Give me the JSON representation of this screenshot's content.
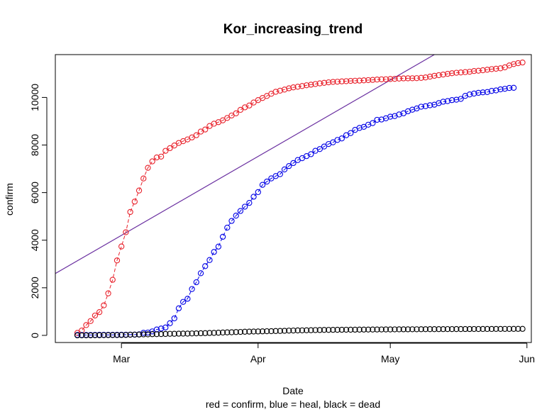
{
  "chart_data": {
    "type": "scatter",
    "title": "Kor_increasing_trend",
    "xlabel": "Date",
    "sublabel": "red = confirm, blue = heal, black = dead",
    "ylabel": "confirm",
    "x_start": "2020-02-20",
    "x_tick_labels": [
      "Mar",
      "Apr",
      "May",
      "Jun"
    ],
    "x_tick_dates": [
      "2020-03-01",
      "2020-04-01",
      "2020-05-01",
      "2020-06-01"
    ],
    "xlim": [
      "2020-02-15",
      "2020-06-02"
    ],
    "ylim": [
      -300,
      11800
    ],
    "y_ticks": [
      0,
      2000,
      4000,
      6000,
      8000,
      10000
    ],
    "grid": false,
    "legend": "none",
    "trend_line": {
      "x": [
        "2020-02-15",
        "2020-05-11"
      ],
      "y": [
        2600,
        11800
      ],
      "color": "#6a2fa0"
    },
    "series": [
      {
        "color": "#e8202a",
        "connected": true,
        "values": [
          104,
          204,
          433,
          602,
          833,
          977,
          1261,
          1766,
          2337,
          3150,
          3736,
          4335,
          5186,
          5621,
          6088,
          6593,
          7041,
          7313,
          7478,
          7513,
          7755,
          7869,
          7979,
          8086,
          8162,
          8236,
          8320,
          8413,
          8565,
          8652,
          8799,
          8897,
          8961,
          9037,
          9137,
          9241,
          9332,
          9478,
          9583,
          9661,
          9786,
          9887,
          9976,
          10062,
          10156,
          10237,
          10284,
          10331,
          10384,
          10423,
          10450,
          10480,
          10512,
          10537,
          10564,
          10591,
          10613,
          10635,
          10653,
          10661,
          10674,
          10683,
          10694,
          10702,
          10708,
          10718,
          10728,
          10738,
          10752,
          10761,
          10765,
          10774,
          10780,
          10793,
          10801,
          10804,
          10806,
          10810,
          10822,
          10840,
          10874,
          10909,
          10936,
          10962,
          10991,
          11018,
          11037,
          11050,
          11065,
          11078,
          11110,
          11122,
          11142,
          11165,
          11190,
          11206,
          11225,
          11265,
          11344,
          11402,
          11441,
          11468
        ]
      },
      {
        "color": "#0000e6",
        "connected": true,
        "values": [
          16,
          16,
          16,
          17,
          18,
          22,
          22,
          22,
          22,
          24,
          27,
          28,
          30,
          31,
          41,
          108,
          118,
          166,
          247,
          288,
          333,
          510,
          714,
          1137,
          1407,
          1540,
          1947,
          2233,
          2612,
          2909,
          3166,
          3507,
          3730,
          4144,
          4528,
          4811,
          5033,
          5228,
          5408,
          5567,
          5828,
          6021,
          6325,
          6463,
          6598,
          6694,
          6776,
          6973,
          7117,
          7243,
          7368,
          7447,
          7534,
          7616,
          7757,
          7829,
          7937,
          8042,
          8114,
          8213,
          8277,
          8411,
          8501,
          8635,
          8717,
          8764,
          8854,
          8922,
          9059,
          9072,
          9123,
          9191,
          9217,
          9283,
          9333,
          9419,
          9484,
          9538,
          9610,
          9632,
          9671,
          9695,
          9762,
          9821,
          9846,
          9888,
          9904,
          9938,
          10066,
          10125,
          10162,
          10194,
          10213,
          10226,
          10275,
          10295,
          10340,
          10363,
          10398,
          10405
        ]
      },
      {
        "color": "#000000",
        "connected": false,
        "values": [
          1,
          2,
          2,
          2,
          6,
          8,
          10,
          12,
          13,
          13,
          16,
          17,
          28,
          32,
          35,
          42,
          44,
          50,
          51,
          54,
          60,
          66,
          67,
          72,
          75,
          75,
          81,
          84,
          91,
          94,
          102,
          104,
          111,
          120,
          126,
          131,
          139,
          144,
          152,
          158,
          162,
          165,
          169,
          174,
          177,
          183,
          186,
          192,
          200,
          204,
          208,
          211,
          214,
          217,
          222,
          225,
          229,
          230,
          232,
          234,
          236,
          237,
          238,
          240,
          242,
          243,
          244,
          246,
          247,
          248,
          250,
          250,
          252,
          254,
          255,
          255,
          256,
          256,
          258,
          259,
          260,
          260,
          262,
          262,
          263,
          263,
          264,
          264,
          266,
          266,
          267,
          267,
          269,
          269,
          269,
          270,
          270,
          271,
          271,
          272,
          273,
          273
        ]
      }
    ]
  }
}
